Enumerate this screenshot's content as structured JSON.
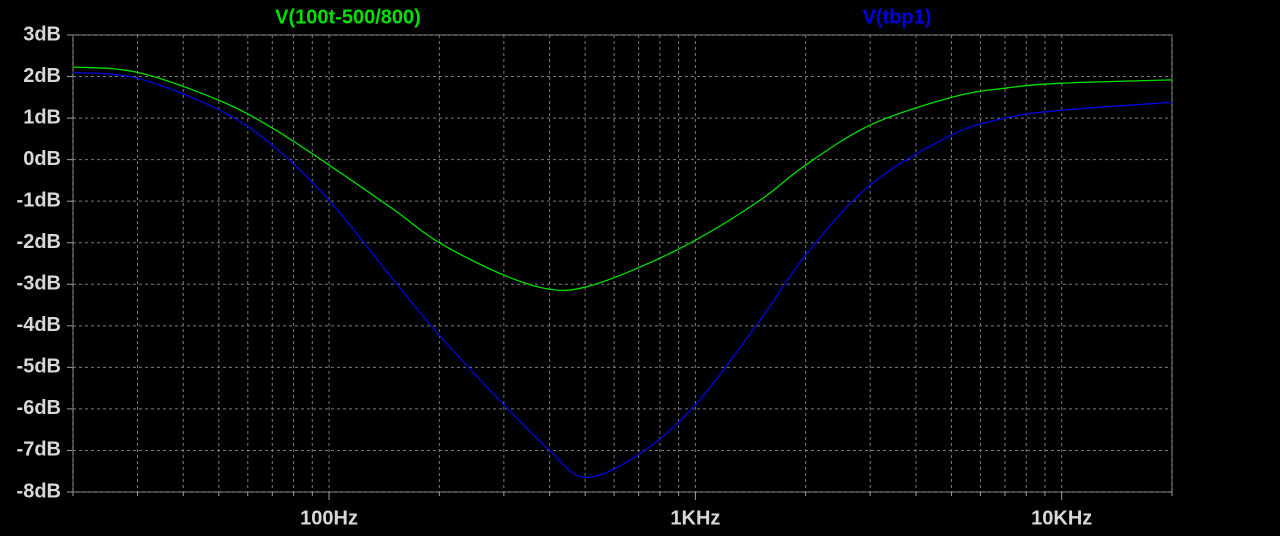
{
  "chart_data": {
    "type": "line",
    "x": [
      20,
      30,
      50,
      70,
      100,
      150,
      200,
      300,
      400,
      500,
      700,
      1000,
      1500,
      2000,
      3000,
      5000,
      7000,
      10000,
      20000
    ],
    "series": [
      {
        "name": "V(100t-500/800)",
        "color": "#00e000",
        "values": [
          2.23,
          2.1,
          1.43,
          0.76,
          -0.13,
          -1.2,
          -2.0,
          -2.78,
          -3.12,
          -3.07,
          -2.6,
          -1.94,
          -0.98,
          -0.13,
          0.83,
          1.5,
          1.72,
          1.84,
          1.92
        ]
      },
      {
        "name": "V(tbp1)",
        "color": "#0000e0",
        "values": [
          2.1,
          1.96,
          1.2,
          0.35,
          -0.98,
          -2.9,
          -4.23,
          -5.9,
          -7.0,
          -7.65,
          -7.1,
          -5.9,
          -3.87,
          -2.3,
          -0.61,
          0.59,
          1.0,
          1.19,
          1.38
        ]
      }
    ],
    "xlim": [
      20,
      20000
    ],
    "xscale": "log",
    "xticks": [
      {
        "value": 100,
        "label": "100Hz"
      },
      {
        "value": 1000,
        "label": "1KHz"
      },
      {
        "value": 10000,
        "label": "10KHz"
      }
    ],
    "xminorticks": [
      20,
      30,
      40,
      50,
      60,
      70,
      80,
      90,
      200,
      300,
      400,
      500,
      600,
      700,
      800,
      900,
      2000,
      3000,
      4000,
      5000,
      6000,
      7000,
      8000,
      9000,
      20000
    ],
    "ylim": [
      -8,
      3
    ],
    "yticks": [
      {
        "value": 3,
        "label": "3dB"
      },
      {
        "value": 2,
        "label": "2dB"
      },
      {
        "value": 1,
        "label": "1dB"
      },
      {
        "value": 0,
        "label": "0dB"
      },
      {
        "value": -1,
        "label": "-1dB"
      },
      {
        "value": -2,
        "label": "-2dB"
      },
      {
        "value": -3,
        "label": "-3dB"
      },
      {
        "value": -4,
        "label": "-4dB"
      },
      {
        "value": -5,
        "label": "-5dB"
      },
      {
        "value": -6,
        "label": "-6dB"
      },
      {
        "value": -7,
        "label": "-7dB"
      },
      {
        "value": -8,
        "label": "-8dB"
      }
    ],
    "grid": true
  }
}
